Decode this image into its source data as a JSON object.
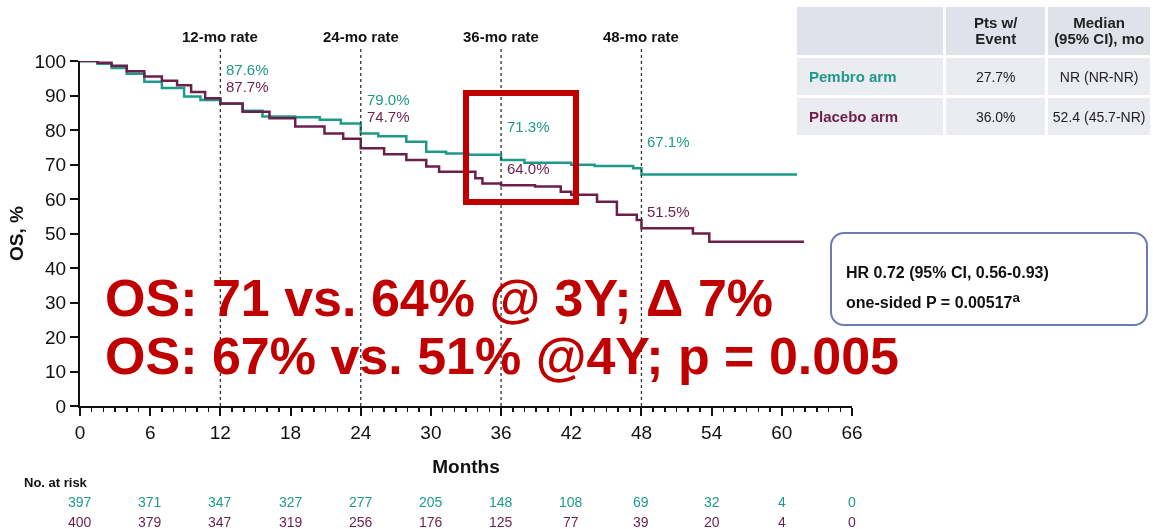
{
  "chart_data": {
    "type": "step",
    "xlabel": "Months",
    "ylabel": "OS, %",
    "series": [
      {
        "name": "Pembro arm",
        "color": "#1f9a8a",
        "x": [
          0,
          1.5,
          2.7,
          4,
          5.5,
          7,
          8.9,
          10.3,
          12,
          13.9,
          15.6,
          18.4,
          20.5,
          22.3,
          24,
          25.5,
          27.9,
          29.6,
          31.3,
          33.2,
          36,
          38,
          42,
          44,
          47.3,
          48,
          61.3
        ],
        "values": [
          100,
          99.2,
          98,
          96.3,
          94,
          92.2,
          89.7,
          88.7,
          87.6,
          85.6,
          83.9,
          83.7,
          83,
          81.9,
          79,
          78.2,
          76.6,
          73.7,
          73.2,
          72.8,
          71.3,
          70.5,
          69.9,
          69.6,
          68.9,
          67.1,
          67.1
        ],
        "value_labels": [
          null,
          null,
          null,
          null,
          null,
          null,
          null,
          null,
          "87.6%",
          null,
          null,
          null,
          null,
          null,
          "79.0%",
          null,
          null,
          null,
          null,
          null,
          "71.3%",
          null,
          null,
          null,
          null,
          "67.1%",
          null
        ]
      },
      {
        "name": "Placebo arm",
        "color": "#6d1f4b",
        "x": [
          0,
          1.5,
          2.7,
          4,
          5.5,
          7,
          8.3,
          9.5,
          10.7,
          12,
          13.9,
          16.2,
          18.4,
          20.9,
          22.5,
          24,
          26,
          27.9,
          29.6,
          30.7,
          33.2,
          33.8,
          34.4,
          36,
          38.9,
          41.1,
          42,
          44.2,
          45.9,
          47.6,
          48,
          52.4,
          53.8,
          61.9
        ],
        "values": [
          100,
          99.5,
          98.6,
          97,
          95.5,
          94.3,
          93,
          91,
          89.2,
          87.7,
          85.3,
          83.4,
          81,
          79,
          77.5,
          74.7,
          73,
          71.3,
          69.4,
          67.9,
          67.9,
          66,
          64.5,
          64,
          63.6,
          62.1,
          61.2,
          59.2,
          55.4,
          53.9,
          51.5,
          50,
          47.6,
          47.6
        ],
        "value_labels": [
          null,
          null,
          null,
          null,
          null,
          null,
          null,
          null,
          null,
          "87.7%",
          null,
          null,
          null,
          null,
          null,
          "74.7%",
          null,
          null,
          null,
          null,
          null,
          null,
          null,
          "64.0%",
          null,
          null,
          null,
          null,
          null,
          null,
          "51.5%",
          null,
          null,
          null
        ]
      }
    ],
    "xlim": [
      0,
      66
    ],
    "xticks": [
      0,
      {
        "value": 1,
        "label": null
      },
      {
        "value": 2,
        "label": null
      },
      {
        "value": 3,
        "label": null
      },
      {
        "value": 4,
        "label": null
      },
      {
        "value": 5,
        "label": null
      },
      6,
      {
        "value": 7,
        "label": null
      },
      {
        "value": 8,
        "label": null
      },
      {
        "value": 9,
        "label": null
      },
      {
        "value": 10,
        "label": null
      },
      {
        "value": 11,
        "label": null
      },
      12,
      {
        "value": 13,
        "label": null
      },
      {
        "value": 14,
        "label": null
      },
      {
        "value": 15,
        "label": null
      },
      {
        "value": 16,
        "label": null
      },
      {
        "value": 17,
        "label": null
      },
      18,
      {
        "value": 19,
        "label": null
      },
      {
        "value": 20,
        "label": null
      },
      {
        "value": 21,
        "label": null
      },
      {
        "value": 22,
        "label": null
      },
      {
        "value": 23,
        "label": null
      },
      24,
      {
        "value": 25,
        "label": null
      },
      {
        "value": 26,
        "label": null
      },
      {
        "value": 27,
        "label": null
      },
      {
        "value": 28,
        "label": null
      },
      {
        "value": 29,
        "label": null
      },
      30,
      {
        "value": 31,
        "label": null
      },
      {
        "value": 32,
        "label": null
      },
      {
        "value": 33,
        "label": null
      },
      {
        "value": 34,
        "label": null
      },
      {
        "value": 35,
        "label": null
      },
      36,
      {
        "value": 37,
        "label": null
      },
      {
        "value": 38,
        "label": null
      },
      {
        "value": 39,
        "label": null
      },
      {
        "value": 40,
        "label": null
      },
      {
        "value": 41,
        "label": null
      },
      42,
      {
        "value": 43,
        "label": null
      },
      {
        "value": 44,
        "label": null
      },
      {
        "value": 45,
        "label": null
      },
      {
        "value": 46,
        "label": null
      },
      {
        "value": 47,
        "label": null
      },
      48,
      {
        "value": 49,
        "label": null
      },
      {
        "value": 50,
        "label": null
      },
      {
        "value": 51,
        "label": null
      },
      {
        "value": 52,
        "label": null
      },
      {
        "value": 53,
        "label": null
      },
      54,
      {
        "value": 55,
        "label": null
      },
      {
        "value": 56,
        "label": null
      },
      {
        "value": 57,
        "label": null
      },
      {
        "value": 58,
        "label": null
      },
      {
        "value": 59,
        "label": null
      },
      60,
      {
        "value": 61,
        "label": null
      },
      {
        "value": 62,
        "label": null
      },
      {
        "value": 63,
        "label": null
      },
      {
        "value": 64,
        "label": null
      },
      {
        "value": 65,
        "label": null
      },
      66
    ],
    "ylim": [
      0,
      100
    ],
    "yticks": [
      0,
      10,
      20,
      30,
      40,
      50,
      60,
      70,
      80,
      90,
      100
    ],
    "ref_lines": [
      {
        "axis": "x",
        "value": 12,
        "label": "12-mo rate",
        "color": "#333333",
        "line_style": "dotted"
      },
      {
        "axis": "x",
        "value": 24,
        "label": "24-mo rate",
        "color": "#333333",
        "line_style": "dotted"
      },
      {
        "axis": "x",
        "value": 36,
        "label": "36-mo rate",
        "color": "#333333",
        "line_style": "dotted"
      },
      {
        "axis": "x",
        "value": 48,
        "label": "48-mo rate",
        "color": "#333333",
        "line_style": "dotted"
      }
    ],
    "grid": false,
    "legend": false,
    "marker": "none",
    "line_style": "solid",
    "annotations": [
      "Pts w/ Event",
      "Median (95% CI), mo",
      "27.7%",
      "NR (NR-NR)",
      "36.0%",
      "52.4 (45.7-NR)",
      "HR 0.72 (95% CI, 0.56-0.93)",
      "one-sided P = 0.00517$^{a}$",
      "OS: 71 vs. 64% @ 3Y; Δ 7%",
      "OS: 67% vs. 51% @4Y; p = 0.005",
      "No. at risk",
      "397",
      "371",
      "347",
      "327",
      "277",
      "205",
      "148",
      "108",
      "69",
      "32",
      "4",
      "0",
      "400",
      "379",
      "347",
      "319",
      "256",
      "176",
      "125",
      "77",
      "39",
      "20",
      "4",
      "0"
    ]
  }
}
